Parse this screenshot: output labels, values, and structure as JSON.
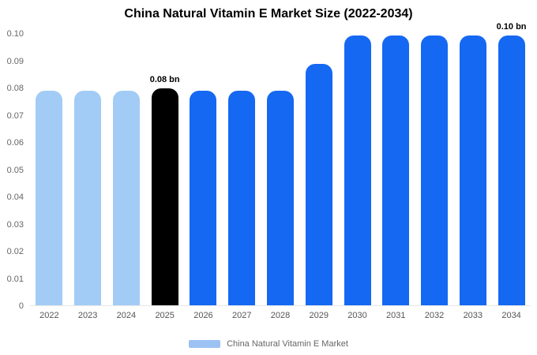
{
  "title": "China Natural Vitamin E Market Size (2022-2034)",
  "legend": {
    "label": "China Natural Vitamin E Market",
    "swatch_color": "#9cc2f4"
  },
  "colors": {
    "light": "#a2ccf5",
    "main": "#1568f2",
    "highlight": "#000000"
  },
  "chart_data": {
    "type": "bar",
    "title": "China Natural Vitamin E Market Size (2022-2034)",
    "unit": "bn",
    "categories": [
      "2022",
      "2023",
      "2024",
      "2025",
      "2026",
      "2027",
      "2028",
      "2029",
      "2030",
      "2031",
      "2032",
      "2033",
      "2034"
    ],
    "values": [
      0.079,
      0.079,
      0.079,
      0.08,
      0.079,
      0.079,
      0.079,
      0.089,
      0.0995,
      0.0995,
      0.0995,
      0.0995,
      0.0995
    ],
    "bar_colors": [
      "light",
      "light",
      "light",
      "highlight",
      "main",
      "main",
      "main",
      "main",
      "main",
      "main",
      "main",
      "main",
      "main"
    ],
    "annotations": [
      {
        "index": 3,
        "text": "0.08 bn"
      },
      {
        "index": 12,
        "text": "0.10 bn"
      }
    ],
    "ylim": [
      0,
      0.1
    ],
    "y_ticks": [
      "0",
      "0.01",
      "0.02",
      "0.03",
      "0.04",
      "0.05",
      "0.06",
      "0.07",
      "0.08",
      "0.09",
      "0.10"
    ],
    "xlabel": "",
    "ylabel": "",
    "grid": false,
    "legend_position": "bottom",
    "series_name": "China Natural Vitamin E Market"
  }
}
